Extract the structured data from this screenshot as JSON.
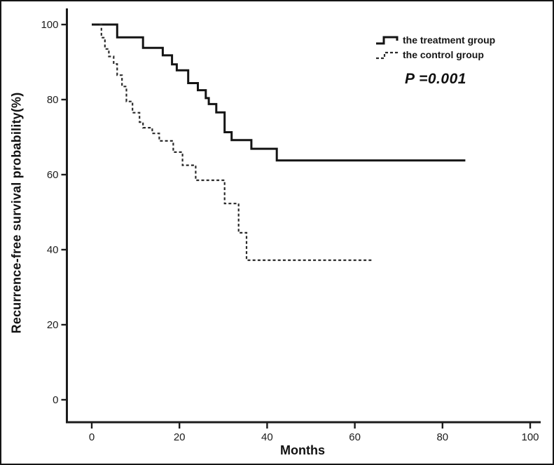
{
  "figure": {
    "background": "#ffffff",
    "line_color": "#141414"
  },
  "chart_data": {
    "type": "line",
    "subtype": "kaplan-meier-step",
    "title": "",
    "xlabel": "Months",
    "ylabel": "Recurrence-free survival probability(%)",
    "xlim": [
      0,
      100
    ],
    "ylim": [
      0,
      100
    ],
    "x_ticks": [
      0,
      20,
      40,
      60,
      80,
      100
    ],
    "y_ticks": [
      0,
      20,
      40,
      60,
      80,
      100
    ],
    "grid": false,
    "annotation": "P =0.001",
    "legend": {
      "position": "top-right",
      "entries": [
        {
          "label": "the treatment group",
          "style": "solid"
        },
        {
          "label": "the control group",
          "style": "dashed"
        }
      ]
    },
    "series": [
      {
        "name": "the treatment group",
        "style": "solid",
        "color": "#141414",
        "points": [
          [
            0,
            100
          ],
          [
            5.8,
            96.6
          ],
          [
            11.7,
            93.8
          ],
          [
            16.2,
            91.8
          ],
          [
            18.3,
            89.4
          ],
          [
            19.4,
            87.8
          ],
          [
            22.0,
            84.4
          ],
          [
            24.2,
            82.5
          ],
          [
            26.0,
            80.4
          ],
          [
            26.7,
            78.8
          ],
          [
            28.4,
            76.6
          ],
          [
            30.3,
            71.3
          ],
          [
            31.9,
            69.2
          ],
          [
            36.4,
            66.9
          ],
          [
            42.2,
            63.8
          ]
        ],
        "end_x": 85.2
      },
      {
        "name": "the control group",
        "style": "dashed",
        "color": "#2a2a2a",
        "points": [
          [
            1.8,
            100
          ],
          [
            2.2,
            96.5
          ],
          [
            3.0,
            93.5
          ],
          [
            3.9,
            91.5
          ],
          [
            5.0,
            89.5
          ],
          [
            5.8,
            86.5
          ],
          [
            6.9,
            83.5
          ],
          [
            7.9,
            79.5
          ],
          [
            9.3,
            76.5
          ],
          [
            10.9,
            74.0
          ],
          [
            11.7,
            72.5
          ],
          [
            13.8,
            71.0
          ],
          [
            15.4,
            69.0
          ],
          [
            18.6,
            66.0
          ],
          [
            20.7,
            62.5
          ],
          [
            23.7,
            58.5
          ],
          [
            30.3,
            52.3
          ],
          [
            33.5,
            44.5
          ],
          [
            35.3,
            37.2
          ]
        ],
        "end_x": 64
      }
    ]
  }
}
